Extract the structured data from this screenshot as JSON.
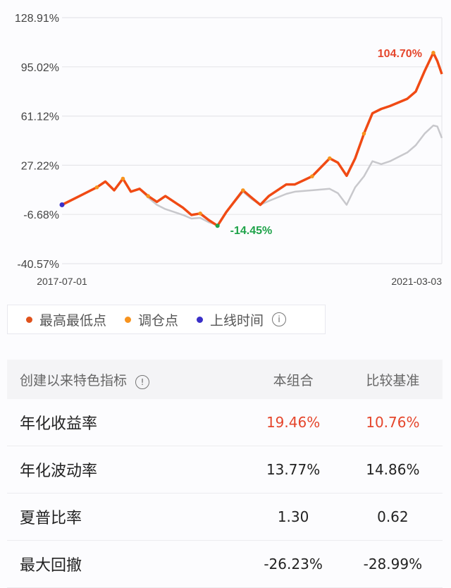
{
  "chart_data": {
    "type": "line",
    "yticks": [
      "128.91%",
      "95.02%",
      "61.12%",
      "27.22%",
      "-6.68%",
      "-40.57%"
    ],
    "ylim": [
      -40.57,
      128.91
    ],
    "xticks": [
      "2017-07-01",
      "2021-03-03"
    ],
    "xlim": [
      "2017-07-01",
      "2021-03-03"
    ],
    "grid": true,
    "x": [
      "2017-07-01",
      "2017-09-01",
      "2017-11-01",
      "2017-12-01",
      "2018-01-01",
      "2018-02-01",
      "2018-03-01",
      "2018-04-01",
      "2018-05-01",
      "2018-06-01",
      "2018-07-01",
      "2018-09-01",
      "2018-10-01",
      "2018-11-01",
      "2018-12-01",
      "2019-01-01",
      "2019-02-01",
      "2019-04-01",
      "2019-05-01",
      "2019-06-01",
      "2019-07-01",
      "2019-09-01",
      "2019-10-01",
      "2019-12-01",
      "2020-02-01",
      "2020-03-01",
      "2020-04-01",
      "2020-05-01",
      "2020-06-01",
      "2020-07-01",
      "2020-08-01",
      "2020-09-01",
      "2020-11-01",
      "2020-12-01",
      "2021-01-01",
      "2021-02-01",
      "2021-02-15",
      "2021-03-03"
    ],
    "series": [
      {
        "values": [
          0,
          6,
          12,
          16,
          10,
          18,
          9,
          11,
          6,
          2,
          6,
          -2,
          -7,
          -6,
          -10.5,
          -14.45,
          -5,
          10,
          5,
          0,
          6,
          14,
          14,
          19.6,
          32,
          29,
          20,
          32,
          49,
          63,
          66,
          68,
          73,
          78,
          92,
          104.7,
          99,
          90
        ],
        "color": "#f04a14"
      },
      {
        "values": [
          0,
          6,
          12,
          16,
          10,
          18,
          9,
          11,
          5,
          0,
          -3,
          -7,
          -9.5,
          -9,
          -12,
          -14,
          -5,
          9,
          4,
          0,
          2.6,
          7.5,
          9,
          10,
          11,
          8,
          0,
          12,
          19.6,
          30,
          28,
          30,
          36,
          41,
          49,
          54.6,
          54,
          46
        ],
        "color": "#c8c8cc"
      }
    ],
    "annotations": {
      "max": {
        "label": "104.70%",
        "date": "2021-02-01",
        "value": 104.7,
        "color": "#e5462c"
      },
      "min": {
        "label": "-14.45%",
        "date": "2019-01-01",
        "value": -14.45,
        "color": "#1fa34a"
      }
    },
    "rebalance_dates": [
      "2017-11-01",
      "2018-02-01",
      "2018-05-01",
      "2018-11-01",
      "2019-04-01",
      "2019-12-01",
      "2020-02-01",
      "2020-06-01",
      "2021-02-01"
    ],
    "launch_date": "2017-07-01"
  },
  "legend": [
    {
      "label": "最高最低点",
      "color": "#e0521c"
    },
    {
      "label": "调仓点",
      "color": "#f7931e"
    },
    {
      "label": "上线时间",
      "color": "#3a2fc8"
    }
  ],
  "legend_info_icon": "info-icon",
  "table": {
    "headers": [
      "创建以来特色指标",
      "本组合",
      "比较基准"
    ],
    "rows": [
      [
        "年化收益率",
        "19.46%",
        "10.76%"
      ],
      [
        "年化波动率",
        "13.77%",
        "14.86%"
      ],
      [
        "夏普比率",
        "1.30",
        "0.62"
      ],
      [
        "最大回撤",
        "-26.23%",
        "-28.99%"
      ]
    ]
  }
}
